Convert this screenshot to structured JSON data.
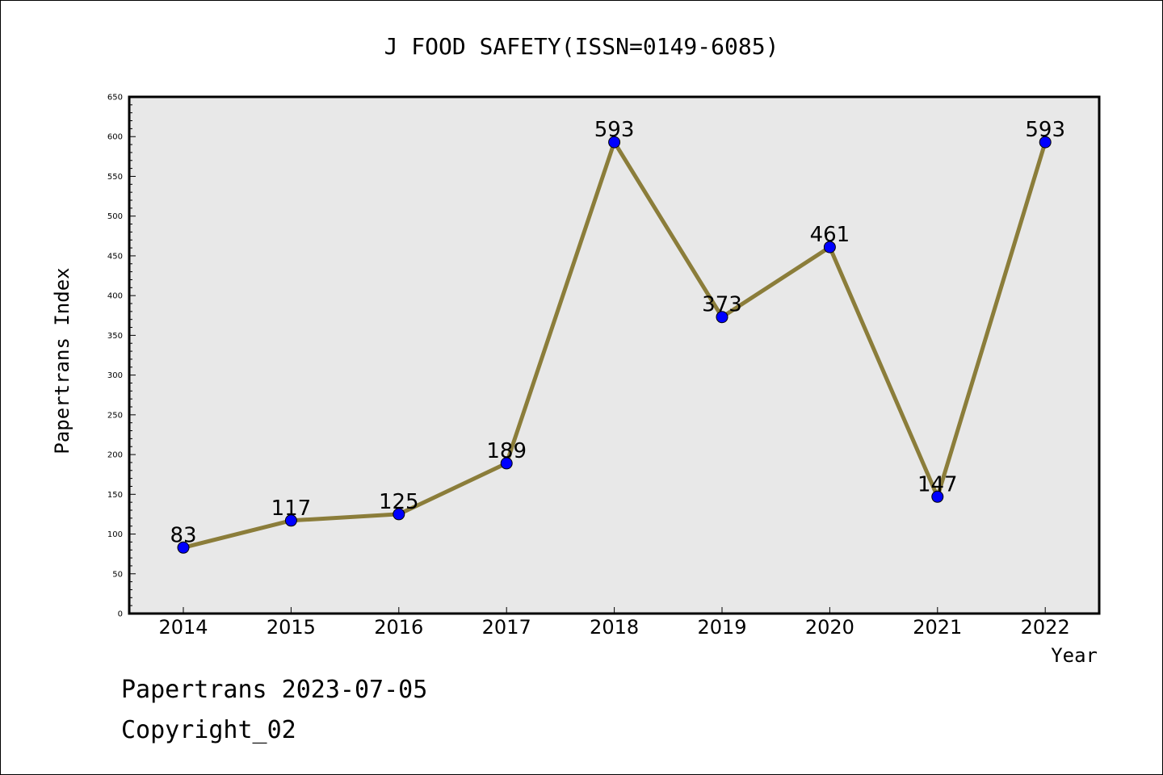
{
  "chart_data": {
    "type": "line",
    "title": "J FOOD SAFETY(ISSN=0149-6085)",
    "xlabel": "Year",
    "ylabel": "Papertrans Index",
    "categories": [
      "2014",
      "2015",
      "2016",
      "2017",
      "2018",
      "2019",
      "2020",
      "2021",
      "2022"
    ],
    "series": [
      {
        "values": [
          83,
          117,
          125,
          189,
          593,
          373,
          461,
          147,
          593
        ]
      }
    ],
    "data_labels": [
      "83",
      "117",
      "125",
      "189",
      "593",
      "373",
      "461",
      "147",
      "593"
    ],
    "ylim": [
      0,
      650
    ],
    "yticks": [
      0,
      50,
      100,
      150,
      200,
      250,
      300,
      350,
      400,
      450,
      500,
      550,
      600,
      650
    ],
    "ytick_labels": [
      "0",
      "50",
      "100",
      "150",
      "200",
      "250",
      "300",
      "350",
      "400",
      "450",
      "500",
      "550",
      "600",
      "650"
    ],
    "grid": false,
    "line_color": "#8b7d3a",
    "marker_color": "#0000ff",
    "plot_background": "#e8e8e8"
  },
  "footer": {
    "line1": "Papertrans 2023-07-05",
    "line2": "Copyright_02"
  }
}
